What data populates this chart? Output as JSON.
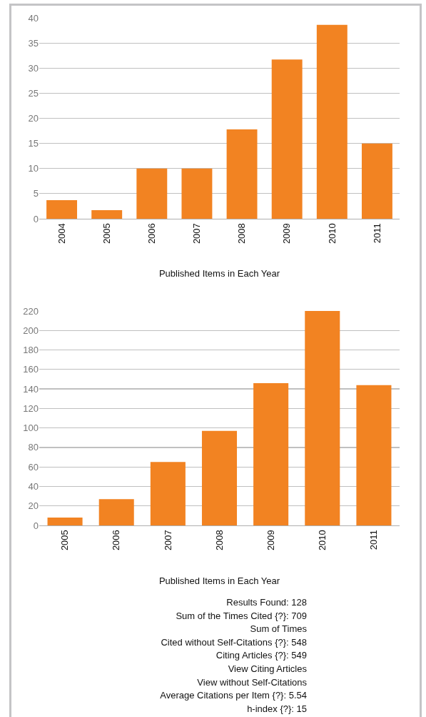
{
  "chart_data": [
    {
      "type": "bar",
      "xlabel": "Published Items in Each Year",
      "categories": [
        "2004",
        "2005",
        "2006",
        "2007",
        "2008",
        "2009",
        "2010",
        "2011"
      ],
      "values": [
        3.7,
        1.7,
        10,
        10,
        17.8,
        31.7,
        38.6,
        15
      ],
      "color": "#f28322",
      "ylim": [
        0,
        40
      ],
      "yticks": [
        0,
        5,
        10,
        15,
        20,
        25,
        30,
        35,
        40
      ],
      "grid": "y"
    },
    {
      "type": "bar",
      "xlabel": "Published Items in Each Year",
      "categories": [
        "2005",
        "2006",
        "2007",
        "2008",
        "2009",
        "2010",
        "2011"
      ],
      "values": [
        8,
        27,
        65,
        97,
        146,
        220,
        144
      ],
      "color": "#f28322",
      "ylim": [
        0,
        220
      ],
      "yticks": [
        0,
        20,
        40,
        60,
        80,
        100,
        120,
        140,
        160,
        180,
        200,
        220
      ],
      "grid": "y"
    },
    {
      "type": "other",
      "annotations": [
        "Results Found: 128",
        "Sum of the Times Cited {?}: 709",
        "Sum of Times",
        "Cited without Self-Citations {?}: 548",
        "Citing Articles {?}: 549",
        "View Citing Articles",
        "View without Self-Citations",
        "Average Citations per Item {?}: 5.54",
        "h-index {?}: 15"
      ]
    }
  ]
}
